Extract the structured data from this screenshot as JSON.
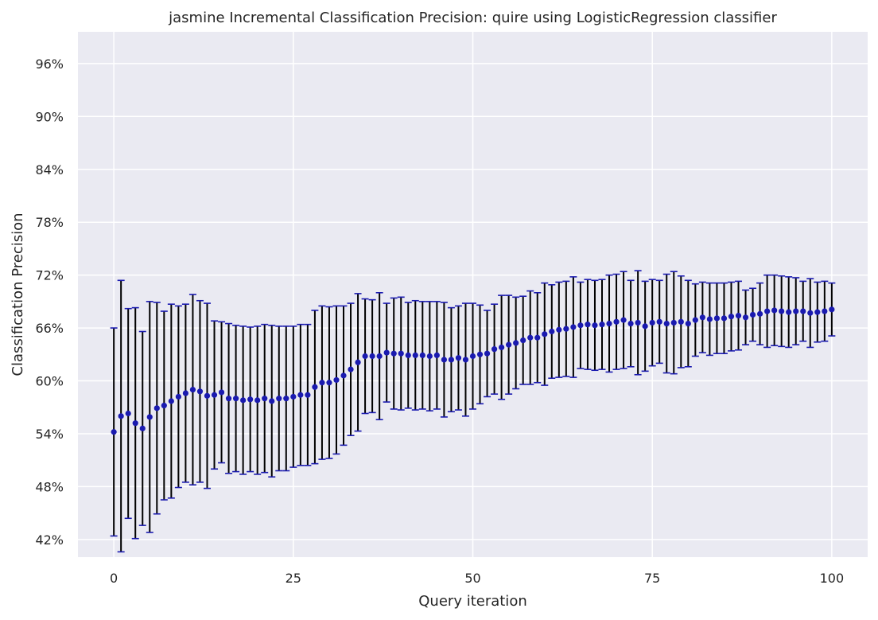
{
  "chart_data": {
    "type": "scatter",
    "title": "jasmine Incremental Classification Precision: quire using LogisticRegression classifier",
    "xlabel": "Query iteration",
    "ylabel": "Classification Precision",
    "xlim": [
      -5,
      105
    ],
    "ylim": [
      40.0,
      99.6
    ],
    "xticks": [
      0,
      25,
      50,
      75,
      100
    ],
    "xtick_labels": [
      "0",
      "25",
      "50",
      "75",
      "100"
    ],
    "yticks": [
      42,
      48,
      54,
      60,
      66,
      72,
      78,
      84,
      90,
      96
    ],
    "ytick_labels": [
      "42%",
      "48%",
      "54%",
      "60%",
      "66%",
      "72%",
      "78%",
      "84%",
      "90%",
      "96%"
    ],
    "grid": true,
    "legend": "none",
    "colors": {
      "background": "#eaeaf2",
      "grid": "#ffffff",
      "marker": "#1a1ab0",
      "errorbar": "#000000",
      "cap": "#1a1ab0"
    },
    "series": [
      {
        "x": [
          0,
          1,
          2,
          3,
          4,
          5,
          6,
          7,
          8,
          9,
          10,
          11,
          12,
          13,
          14,
          15,
          16,
          17,
          18,
          19,
          20,
          21,
          22,
          23,
          24,
          25,
          26,
          27,
          28,
          29,
          30,
          31,
          32,
          33,
          34,
          35,
          36,
          37,
          38,
          39,
          40,
          41,
          42,
          43,
          44,
          45,
          46,
          47,
          48,
          49,
          50,
          51,
          52,
          53,
          54,
          55,
          56,
          57,
          58,
          59,
          60,
          61,
          62,
          63,
          64,
          65,
          66,
          67,
          68,
          69,
          70,
          71,
          72,
          73,
          74,
          75,
          76,
          77,
          78,
          79,
          80,
          81,
          82,
          83,
          84,
          85,
          86,
          87,
          88,
          89,
          90,
          91,
          92,
          93,
          94,
          95,
          96,
          97,
          98,
          99,
          100
        ],
        "y": [
          54.2,
          56.0,
          56.3,
          55.2,
          54.6,
          55.9,
          56.9,
          57.2,
          57.7,
          58.2,
          58.6,
          59.0,
          58.8,
          58.3,
          58.4,
          58.7,
          58.0,
          58.0,
          57.8,
          57.9,
          57.8,
          58.0,
          57.7,
          58.0,
          58.0,
          58.2,
          58.4,
          58.4,
          59.3,
          59.8,
          59.8,
          60.1,
          60.6,
          61.3,
          62.1,
          62.8,
          62.8,
          62.8,
          63.2,
          63.1,
          63.1,
          62.9,
          62.9,
          62.9,
          62.8,
          62.9,
          62.4,
          62.4,
          62.6,
          62.4,
          62.8,
          63.0,
          63.1,
          63.6,
          63.8,
          64.1,
          64.3,
          64.6,
          64.9,
          64.9,
          65.3,
          65.6,
          65.8,
          65.9,
          66.1,
          66.3,
          66.4,
          66.3,
          66.4,
          66.5,
          66.7,
          66.9,
          66.5,
          66.6,
          66.2,
          66.6,
          66.7,
          66.5,
          66.6,
          66.7,
          66.5,
          66.9,
          67.2,
          67.0,
          67.1,
          67.1,
          67.3,
          67.4,
          67.2,
          67.5,
          67.6,
          67.9,
          68.0,
          67.9,
          67.8,
          67.9,
          67.9,
          67.7,
          67.8,
          67.9,
          68.1
        ],
        "yerr": [
          11.8,
          15.4,
          11.9,
          13.1,
          11.0,
          13.1,
          12.0,
          10.7,
          11.0,
          10.3,
          10.1,
          10.8,
          10.3,
          10.5,
          8.4,
          8.0,
          8.5,
          8.3,
          8.4,
          8.2,
          8.4,
          8.4,
          8.6,
          8.2,
          8.2,
          8.0,
          8.0,
          8.0,
          8.7,
          8.7,
          8.6,
          8.4,
          7.9,
          7.5,
          7.8,
          6.5,
          6.4,
          7.2,
          5.6,
          6.3,
          6.4,
          6.0,
          6.2,
          6.1,
          6.2,
          6.1,
          6.5,
          5.9,
          5.9,
          6.4,
          6.0,
          5.6,
          4.9,
          5.1,
          5.9,
          5.6,
          5.2,
          5.0,
          5.3,
          5.1,
          5.8,
          5.3,
          5.4,
          5.4,
          5.7,
          4.9,
          5.1,
          5.1,
          5.1,
          5.5,
          5.4,
          5.5,
          4.9,
          5.9,
          5.1,
          4.9,
          4.7,
          5.6,
          5.8,
          5.2,
          4.9,
          4.1,
          4.0,
          4.1,
          4.0,
          4.0,
          3.9,
          3.9,
          3.1,
          3.0,
          3.5,
          4.1,
          4.0,
          4.0,
          4.0,
          3.8,
          3.4,
          3.9,
          3.4,
          3.4,
          3.0
        ]
      }
    ]
  }
}
